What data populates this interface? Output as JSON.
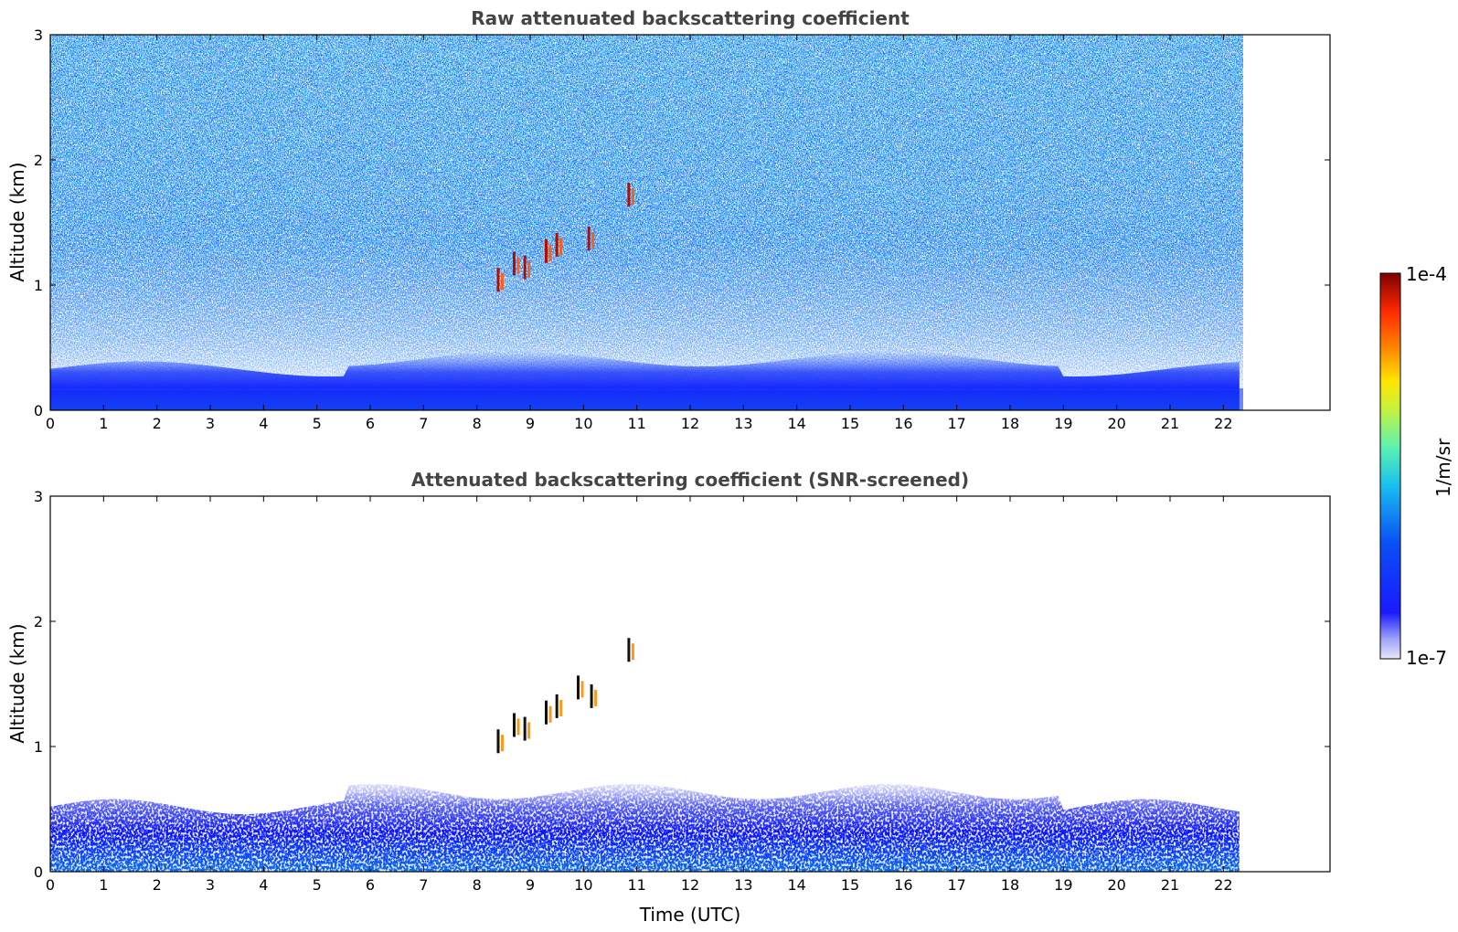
{
  "chart_data": [
    {
      "type": "heatmap",
      "title": "Raw attenuated backscattering coefficient",
      "xlabel": "",
      "ylabel": "Altitude (km)",
      "x_ticks": [
        "0",
        "1",
        "2",
        "3",
        "4",
        "5",
        "6",
        "7",
        "8",
        "9",
        "10",
        "11",
        "12",
        "13",
        "14",
        "15",
        "16",
        "17",
        "18",
        "19",
        "20",
        "21",
        "22"
      ],
      "y_ticks": [
        "0",
        "1",
        "2",
        "3"
      ],
      "xlim": [
        0,
        24
      ],
      "ylim": [
        0,
        3
      ],
      "data_extent_x": [
        0,
        22.3
      ],
      "cloud_features": [
        {
          "time": 8.4,
          "altitude": 1.02
        },
        {
          "time": 8.7,
          "altitude": 1.15
        },
        {
          "time": 8.9,
          "altitude": 1.12
        },
        {
          "time": 9.3,
          "altitude": 1.25
        },
        {
          "time": 9.5,
          "altitude": 1.3
        },
        {
          "time": 10.1,
          "altitude": 1.35
        },
        {
          "time": 10.85,
          "altitude": 1.7
        }
      ]
    },
    {
      "type": "heatmap",
      "title": "Attenuated backscattering coefficient (SNR-screened)",
      "xlabel": "Time (UTC)",
      "ylabel": "Altitude (km)",
      "x_ticks": [
        "0",
        "1",
        "2",
        "3",
        "4",
        "5",
        "6",
        "7",
        "8",
        "9",
        "10",
        "11",
        "12",
        "13",
        "14",
        "15",
        "16",
        "17",
        "18",
        "19",
        "20",
        "21",
        "22"
      ],
      "y_ticks": [
        "0",
        "1",
        "2",
        "3"
      ],
      "xlim": [
        0,
        24
      ],
      "ylim": [
        0,
        3
      ],
      "data_extent_x": [
        0,
        22.3
      ],
      "cloud_features": [
        {
          "time": 8.4,
          "altitude": 1.02
        },
        {
          "time": 8.7,
          "altitude": 1.15
        },
        {
          "time": 8.9,
          "altitude": 1.12
        },
        {
          "time": 9.3,
          "altitude": 1.25
        },
        {
          "time": 9.5,
          "altitude": 1.3
        },
        {
          "time": 9.9,
          "altitude": 1.45
        },
        {
          "time": 10.15,
          "altitude": 1.38
        },
        {
          "time": 10.85,
          "altitude": 1.75
        }
      ]
    }
  ],
  "colorbar": {
    "label": "1/m/sr",
    "max_label": "1e-4",
    "min_label": "1e-7",
    "colors": [
      "#e8e8fb",
      "#0000ff",
      "#0a5cf5",
      "#18b8f0",
      "#5ef2b0",
      "#c8f23a",
      "#ffe600",
      "#ff8c00",
      "#ff2a00",
      "#800000"
    ]
  }
}
